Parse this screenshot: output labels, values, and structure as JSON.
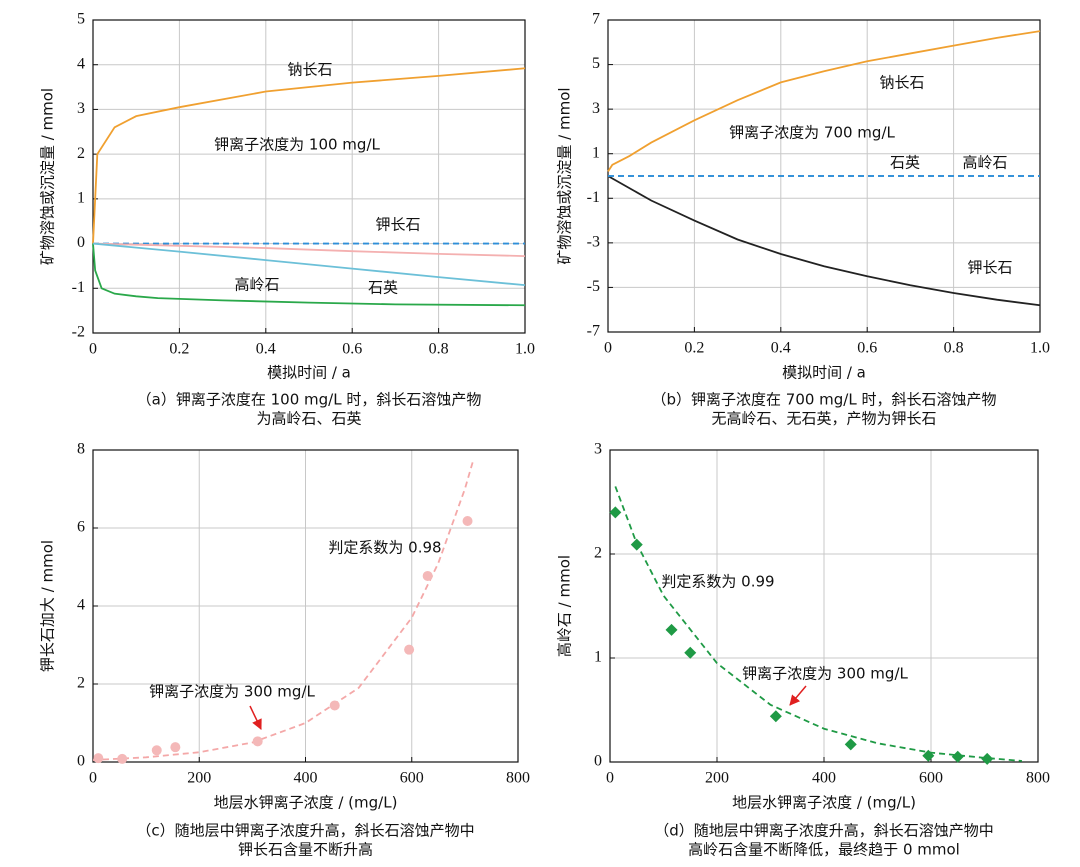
{
  "chart_data": [
    {
      "type": "line",
      "xlabel": "模拟时间 / a",
      "ylabel": "矿物溶蚀或沉淀量 / mmol",
      "caption": [
        "（a）钾离子浓度在 100 mg/L 时，斜长石溶蚀产物",
        "为高岭石、石英"
      ],
      "annotations": [
        "钾离子浓度为 100 mg/L"
      ],
      "xlim": [
        0,
        1
      ],
      "xticks": [
        0,
        0.2,
        0.4,
        0.6,
        0.8,
        {
          "value": 1,
          "label": "1.0"
        }
      ],
      "ylim": [
        -2,
        5
      ],
      "yticks": [
        -2,
        -1,
        0,
        1,
        2,
        3,
        4,
        5
      ],
      "grid": true,
      "reference_line": {
        "value": 0,
        "color": "#2f8fd8",
        "dashed": true
      },
      "series": [
        {
          "name": "钠长石",
          "color": "#f0a030",
          "x": [
            0,
            0.01,
            0.05,
            0.1,
            0.2,
            0.4,
            0.6,
            0.8,
            1.0
          ],
          "values": [
            0,
            2.0,
            2.6,
            2.85,
            3.05,
            3.4,
            3.6,
            3.75,
            3.92
          ]
        },
        {
          "name": "钾长石",
          "color": "#f4b0b0",
          "x": [
            0,
            0.2,
            0.4,
            0.6,
            0.8,
            1.0
          ],
          "values": [
            0,
            -0.05,
            -0.1,
            -0.17,
            -0.23,
            -0.28
          ]
        },
        {
          "name": "高岭石",
          "color": "#2aa84a",
          "x": [
            0,
            0.005,
            0.02,
            0.05,
            0.1,
            0.15,
            0.3,
            0.5,
            0.7,
            1.0
          ],
          "values": [
            0,
            -0.6,
            -1.0,
            -1.12,
            -1.18,
            -1.22,
            -1.27,
            -1.32,
            -1.36,
            -1.38
          ]
        },
        {
          "name": "石英",
          "color": "#6cc0d8",
          "x": [
            0,
            0.2,
            0.4,
            0.6,
            0.8,
            1.0
          ],
          "values": [
            0,
            -0.18,
            -0.37,
            -0.56,
            -0.75,
            -0.93
          ]
        }
      ]
    },
    {
      "type": "line",
      "xlabel": "模拟时间 / a",
      "ylabel": "矿物溶蚀或沉淀量 / mmol",
      "caption": [
        "（b）钾离子浓度在 700 mg/L 时，斜长石溶蚀产物",
        "无高岭石、无石英，产物为钾长石"
      ],
      "annotations": [
        "钾离子浓度为 700 mg/L"
      ],
      "xlim": [
        0,
        1
      ],
      "xticks": [
        0,
        0.2,
        0.4,
        0.6,
        0.8,
        {
          "value": 1,
          "label": "1.0"
        }
      ],
      "ylim": [
        -7,
        7
      ],
      "yticks": [
        -7,
        -5,
        -3,
        -1,
        1,
        3,
        5,
        7
      ],
      "grid": true,
      "series": [
        {
          "name": "钠长石",
          "color": "#f0a030",
          "x": [
            0,
            0.01,
            0.05,
            0.1,
            0.2,
            0.3,
            0.4,
            0.5,
            0.6,
            0.7,
            0.8,
            0.9,
            1.0
          ],
          "values": [
            0.2,
            0.5,
            0.9,
            1.5,
            2.5,
            3.4,
            4.2,
            4.7,
            5.15,
            5.5,
            5.85,
            6.2,
            6.5
          ]
        },
        {
          "name": "钾长石",
          "color": "#222222",
          "x": [
            0,
            0.1,
            0.2,
            0.3,
            0.4,
            0.5,
            0.6,
            0.7,
            0.8,
            0.9,
            1.0
          ],
          "values": [
            0,
            -1.1,
            -2.0,
            -2.85,
            -3.5,
            -4.05,
            -4.5,
            -4.9,
            -5.25,
            -5.55,
            -5.8
          ]
        },
        {
          "name": "石英",
          "color": "#2f8fd8",
          "dashed": true,
          "x": [
            0,
            1.0
          ],
          "values": [
            0,
            0
          ]
        },
        {
          "name": "高岭石",
          "color": "#2f8fd8",
          "dashed": true,
          "x": [
            0,
            1.0
          ],
          "values": [
            0,
            0
          ]
        }
      ]
    },
    {
      "type": "scatter",
      "xlabel": "地层水钾离子浓度 / (mg/L)",
      "ylabel": "钾长石加大 / mmol",
      "caption": [
        "（c）随地层中钾离子浓度升高，斜长石溶蚀产物中",
        "钾长石含量不断升高"
      ],
      "annotations": [
        "判定系数为 0.98",
        "钾离子浓度为 300 mg/L"
      ],
      "xlim": [
        0,
        800
      ],
      "xticks": [
        0,
        200,
        400,
        600,
        800
      ],
      "ylim": [
        0,
        8
      ],
      "yticks": [
        0,
        2,
        4,
        6,
        8
      ],
      "grid": true,
      "marker": "circle",
      "color": "#f4b8b8",
      "x": [
        10,
        55,
        120,
        155,
        310,
        455,
        595,
        630,
        705
      ],
      "values": [
        0.1,
        0.08,
        0.3,
        0.38,
        0.53,
        1.45,
        2.88,
        4.77,
        6.18
      ],
      "trend": {
        "color": "#f4a8a8",
        "dashed": true,
        "x": [
          0,
          100,
          200,
          300,
          400,
          500,
          600,
          650,
          700,
          715
        ],
        "values": [
          0.05,
          0.12,
          0.25,
          0.5,
          1.0,
          1.9,
          3.7,
          5.1,
          7.0,
          7.7
        ]
      }
    },
    {
      "type": "scatter",
      "xlabel": "地层水钾离子浓度 / (mg/L)",
      "ylabel": "高岭石 / mmol",
      "caption": [
        "（d）随地层中钾离子浓度升高，斜长石溶蚀产物中",
        "高岭石含量不断降低，最终趋于 0 mmol"
      ],
      "annotations": [
        "判定系数为 0.99",
        "钾离子浓度为 300 mg/L"
      ],
      "xlim": [
        0,
        800
      ],
      "xticks": [
        0,
        200,
        400,
        600,
        800
      ],
      "ylim": [
        0,
        3
      ],
      "yticks": [
        0,
        1,
        2,
        3
      ],
      "grid": true,
      "marker": "diamond",
      "color": "#1f9a45",
      "x": [
        10,
        50,
        115,
        150,
        310,
        450,
        595,
        650,
        705
      ],
      "values": [
        2.4,
        2.09,
        1.27,
        1.05,
        0.44,
        0.17,
        0.06,
        0.05,
        0.03
      ],
      "trend": {
        "color": "#1f9a45",
        "dashed": true,
        "x": [
          10,
          50,
          100,
          200,
          300,
          400,
          500,
          600,
          700,
          770
        ],
        "values": [
          2.65,
          2.1,
          1.6,
          0.95,
          0.55,
          0.32,
          0.18,
          0.09,
          0.04,
          0.01
        ]
      }
    }
  ]
}
